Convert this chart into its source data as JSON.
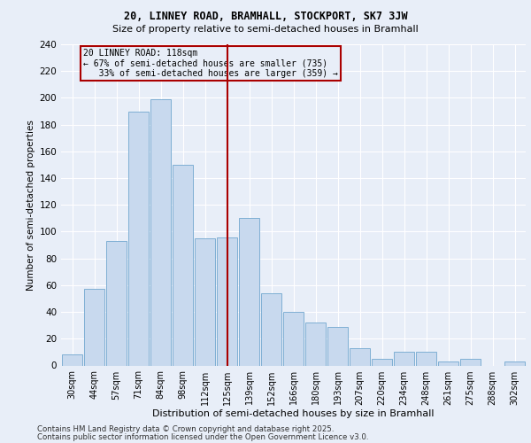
{
  "title": "20, LINNEY ROAD, BRAMHALL, STOCKPORT, SK7 3JW",
  "subtitle": "Size of property relative to semi-detached houses in Bramhall",
  "xlabel": "Distribution of semi-detached houses by size in Bramhall",
  "ylabel": "Number of semi-detached properties",
  "bar_color": "#c8d9ee",
  "bar_edge_color": "#7fafd4",
  "vline_color": "#aa0000",
  "annotation_line1": "20 LINNEY ROAD: 118sqm",
  "annotation_line2": "← 67% of semi-detached houses are smaller (735)",
  "annotation_line3": "   33% of semi-detached houses are larger (359) →",
  "categories": [
    "30sqm",
    "44sqm",
    "57sqm",
    "71sqm",
    "84sqm",
    "98sqm",
    "112sqm",
    "125sqm",
    "139sqm",
    "152sqm",
    "166sqm",
    "180sqm",
    "193sqm",
    "207sqm",
    "220sqm",
    "234sqm",
    "248sqm",
    "261sqm",
    "275sqm",
    "288sqm",
    "302sqm"
  ],
  "values": [
    8,
    57,
    93,
    190,
    199,
    150,
    95,
    96,
    110,
    54,
    40,
    32,
    29,
    13,
    5,
    10,
    10,
    3,
    5,
    0,
    3
  ],
  "n_bars": 21,
  "vline_index": 7,
  "ylim": [
    0,
    240
  ],
  "yticks": [
    0,
    20,
    40,
    60,
    80,
    100,
    120,
    140,
    160,
    180,
    200,
    220,
    240
  ],
  "footer_line1": "Contains HM Land Registry data © Crown copyright and database right 2025.",
  "footer_line2": "Contains public sector information licensed under the Open Government Licence v3.0.",
  "bg_color": "#e8eef8",
  "grid_color": "#ffffff"
}
